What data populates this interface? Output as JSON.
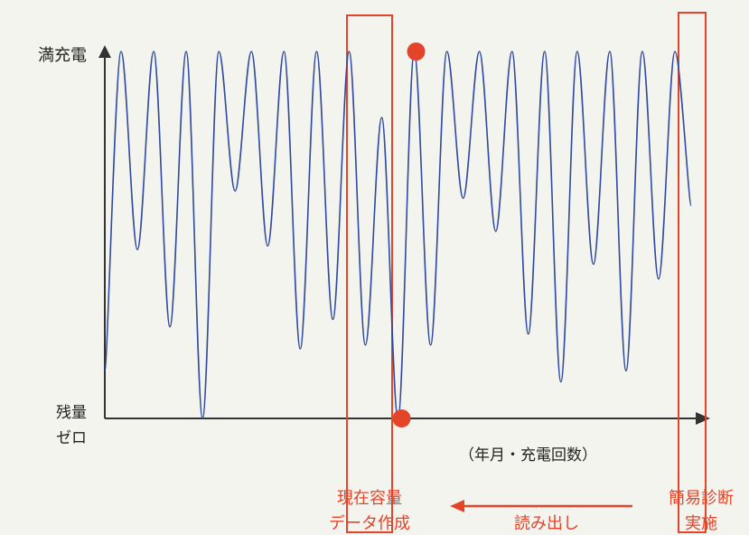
{
  "chart_data": {
    "type": "line",
    "title": "",
    "xlabel": "（年月・充電回数）",
    "ylabel_top": "満充電",
    "ylabel_bottom": [
      "残量",
      "ゼロ"
    ],
    "y_range_note": "0 = 残量ゼロ, 1 = 満充電",
    "ylim": [
      0,
      1
    ],
    "grid": false,
    "line_color": "#2f4aa0",
    "highlight_color": "#e4442a",
    "series": [
      {
        "name": "",
        "points": [
          [
            0.0,
            0.13
          ],
          [
            1.0,
            1.0
          ],
          [
            2.0,
            0.46
          ],
          [
            3.0,
            1.0
          ],
          [
            4.0,
            0.25
          ],
          [
            5.0,
            1.0
          ],
          [
            6.0,
            0.0
          ],
          [
            7.0,
            1.0
          ],
          [
            8.0,
            0.62
          ],
          [
            9.0,
            1.0
          ],
          [
            10.0,
            0.47
          ],
          [
            11.0,
            1.0
          ],
          [
            12.0,
            0.19
          ],
          [
            13.0,
            1.0
          ],
          [
            14.0,
            0.27
          ],
          [
            15.0,
            1.0
          ],
          [
            16.0,
            0.2
          ],
          [
            17.0,
            0.82
          ],
          [
            18.0,
            0.0
          ],
          [
            19.0,
            1.0
          ],
          [
            20.0,
            0.2
          ],
          [
            21.0,
            1.0
          ],
          [
            22.0,
            0.6
          ],
          [
            23.0,
            1.0
          ],
          [
            24.0,
            0.51
          ],
          [
            25.0,
            1.0
          ],
          [
            26.0,
            0.23
          ],
          [
            27.0,
            1.0
          ],
          [
            28.0,
            0.1
          ],
          [
            29.0,
            1.0
          ],
          [
            30.0,
            0.42
          ],
          [
            31.0,
            1.0
          ],
          [
            32.0,
            0.13
          ],
          [
            33.0,
            1.0
          ],
          [
            34.0,
            0.38
          ],
          [
            35.0,
            1.0
          ],
          [
            36.0,
            0.58
          ]
        ]
      }
    ],
    "markers": [
      {
        "name": "current-capacity-full",
        "x": 19.0,
        "y": 1.0
      },
      {
        "name": "current-capacity-zero",
        "x": 18.0,
        "y": 0.0
      }
    ],
    "annotations": {
      "left_box_label": [
        "現在容量",
        "データ作成"
      ],
      "arrow_label": "読み出し",
      "right_box_label": [
        "簡易診断",
        "実施"
      ]
    }
  }
}
